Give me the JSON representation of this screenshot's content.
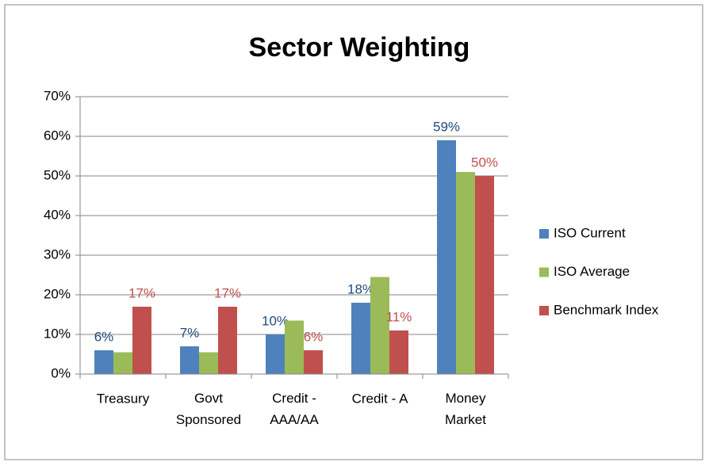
{
  "chart_data": {
    "type": "bar",
    "title": "Sector Weighting",
    "categories": [
      "Treasury",
      "Govt\nSponsored",
      "Credit -\nAAA/AA",
      "Credit - A",
      "Money\nMarket"
    ],
    "series": [
      {
        "name": "ISO Current",
        "color": "#4f81bd",
        "label_color": "#1f497d",
        "values": [
          6,
          7,
          10,
          18,
          59
        ],
        "value_labels": [
          "6%",
          "7%",
          "10%",
          "18%",
          "59%"
        ]
      },
      {
        "name": "ISO Average",
        "color": "#9bbb59",
        "values": [
          5.5,
          5.5,
          13.5,
          24.5,
          51
        ]
      },
      {
        "name": "Benchmark Index",
        "color": "#c0504d",
        "label_color": "#c0504d",
        "values": [
          17,
          17,
          6,
          11,
          50
        ],
        "value_labels": [
          "17%",
          "17%",
          "6%",
          "11%",
          "50%"
        ]
      }
    ],
    "ylim": [
      0,
      70
    ],
    "yticks": [
      {
        "value": 0,
        "label": "0%"
      },
      {
        "value": 10,
        "label": "10%"
      },
      {
        "value": 20,
        "label": "20%"
      },
      {
        "value": 30,
        "label": "30%"
      },
      {
        "value": 40,
        "label": "40%"
      },
      {
        "value": 50,
        "label": "50%"
      },
      {
        "value": 60,
        "label": "60%"
      },
      {
        "value": 70,
        "label": "70%"
      }
    ],
    "grid": true,
    "legend": "right"
  }
}
